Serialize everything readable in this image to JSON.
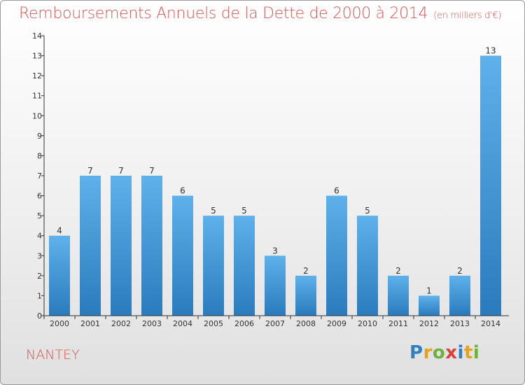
{
  "title": "Remboursements Annuels de la Dette de 2000 à 2014",
  "subtitle": "(en milliers d'€)",
  "commune": "NANTEY",
  "logo": {
    "text": "Proxiti",
    "letters": [
      {
        "ch": "P",
        "color": "#2f7fc1"
      },
      {
        "ch": "r",
        "color": "#e8a21a"
      },
      {
        "ch": "o",
        "color": "#6bb13b"
      },
      {
        "ch": "x",
        "color": "#d9403a"
      },
      {
        "ch": "i",
        "color": "#2f7fc1"
      },
      {
        "ch": "t",
        "color": "#e8a21a"
      },
      {
        "ch": "i",
        "color": "#6bb13b"
      }
    ]
  },
  "colors": {
    "bar_light": "#5eb1ea",
    "bar_dark": "#2a7bbd",
    "title": "#d9544f",
    "axis": "#333333"
  },
  "chart_data": {
    "type": "bar",
    "categories": [
      "2000",
      "2001",
      "2002",
      "2003",
      "2004",
      "2005",
      "2006",
      "2007",
      "2008",
      "2009",
      "2010",
      "2011",
      "2012",
      "2013",
      "2014"
    ],
    "values": [
      4,
      7,
      7,
      7,
      6,
      5,
      5,
      3,
      2,
      6,
      5,
      2,
      1,
      2,
      13
    ],
    "ylim": [
      0,
      14
    ],
    "yticks": [
      0,
      1,
      2,
      3,
      4,
      5,
      6,
      7,
      8,
      9,
      10,
      11,
      12,
      13,
      14
    ],
    "grid": false
  }
}
